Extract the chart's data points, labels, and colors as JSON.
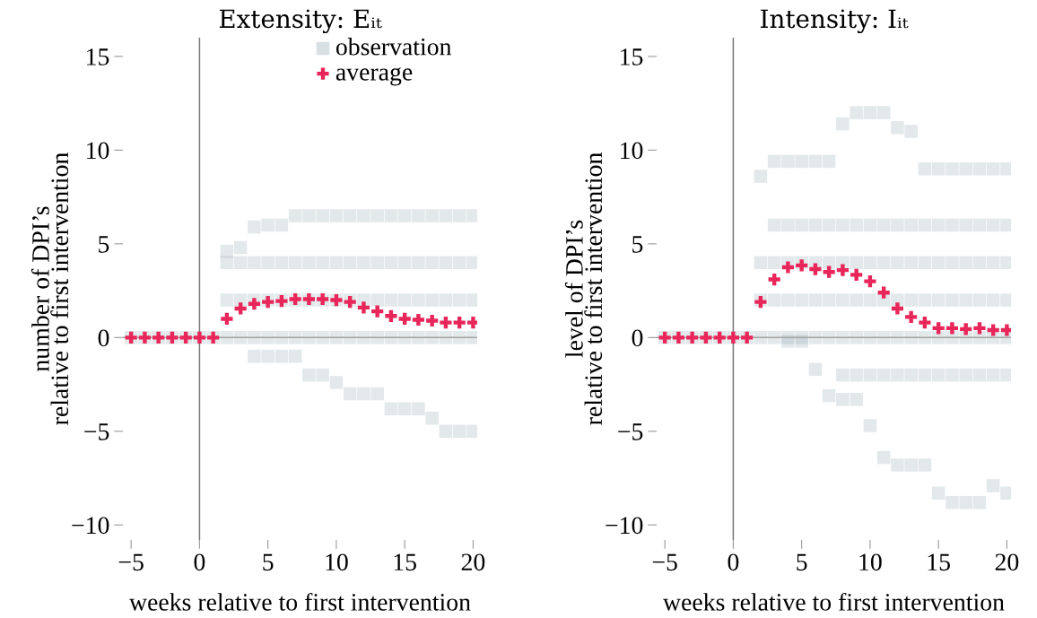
{
  "chart_data": [
    {
      "type": "scatter",
      "title": "Extensity: Eᵢₜ",
      "xlabel": "weeks relative to first intervention",
      "ylabel": "number of DPI’s\nrelative to first intervention",
      "xlim": [
        -5.6,
        20.3
      ],
      "ylim": [
        -10.8,
        16
      ],
      "xticks": [
        -5,
        0,
        5,
        10,
        15,
        20
      ],
      "yticks": [
        -10,
        -5,
        0,
        5,
        10,
        15
      ],
      "grid": false,
      "legend": "top right",
      "ref_lines": [
        {
          "axis": "x",
          "value": 0,
          "color": "#7a7a7a"
        },
        {
          "axis": "y",
          "value": 0,
          "color": "#a3a3a3"
        }
      ],
      "series": [
        {
          "name": "observation",
          "color": "#7f98a5",
          "marker": "square",
          "x": [
            -5,
            -4,
            -3,
            -2,
            -1,
            0,
            1,
            2,
            2,
            2,
            2,
            3,
            3,
            3,
            3,
            4,
            4,
            4,
            4,
            4,
            5,
            5,
            5,
            5,
            5,
            6,
            6,
            6,
            6,
            6,
            7,
            7,
            7,
            7,
            7,
            8,
            8,
            8,
            8,
            8,
            9,
            9,
            9,
            9,
            9,
            10,
            10,
            10,
            10,
            10,
            11,
            11,
            11,
            11,
            11,
            12,
            12,
            12,
            12,
            12,
            13,
            13,
            13,
            13,
            13,
            14,
            14,
            14,
            14,
            14,
            15,
            15,
            15,
            15,
            15,
            16,
            16,
            16,
            16,
            16,
            17,
            17,
            17,
            17,
            17,
            18,
            18,
            18,
            18,
            18,
            19,
            19,
            19,
            19,
            19,
            20,
            20,
            20,
            20,
            20
          ],
          "values": [
            0,
            0,
            0,
            0,
            0,
            0,
            0,
            4.6,
            0,
            2,
            4,
            4.8,
            0,
            2,
            4,
            5.9,
            -1,
            0,
            2,
            4,
            6,
            -1,
            0,
            2,
            4,
            6,
            -1,
            0,
            2,
            4,
            6.5,
            -1,
            0,
            2,
            4,
            6.5,
            -2,
            0,
            2,
            4,
            6.5,
            -2,
            0,
            2,
            4,
            6.5,
            -2.4,
            0,
            2,
            4,
            6.5,
            -3,
            0,
            2,
            4,
            6.5,
            -3,
            0,
            2,
            4,
            6.5,
            -3,
            0,
            2,
            4,
            6.5,
            -3.8,
            0,
            2,
            4,
            6.5,
            -3.8,
            0,
            2,
            4,
            6.5,
            -3.8,
            0,
            2,
            4,
            6.5,
            -4.3,
            0,
            2,
            4,
            6.5,
            -5,
            0,
            2,
            4,
            6.5,
            -5,
            0,
            2,
            4,
            6.5,
            -5,
            0,
            2,
            4
          ]
        },
        {
          "name": "average",
          "color": "#e8265a",
          "marker": "cross",
          "x": [
            -5,
            -4,
            -3,
            -2,
            -1,
            0,
            1,
            2,
            3,
            4,
            5,
            6,
            7,
            8,
            9,
            10,
            11,
            12,
            13,
            14,
            15,
            16,
            17,
            18,
            19,
            20
          ],
          "values": [
            0,
            0,
            0,
            0,
            0,
            0,
            0,
            1.0,
            1.55,
            1.8,
            1.9,
            1.95,
            2.05,
            2.05,
            2.05,
            2.0,
            1.9,
            1.6,
            1.4,
            1.15,
            1.0,
            0.95,
            0.9,
            0.8,
            0.8,
            0.8
          ]
        }
      ]
    },
    {
      "type": "scatter",
      "title": "Intensity: Iᵢₜ",
      "xlabel": "weeks relative to first intervention",
      "ylabel": "level of DPI’s\nrelative to first intervention",
      "xlim": [
        -5.6,
        20.3
      ],
      "ylim": [
        -10.8,
        16
      ],
      "xticks": [
        -5,
        0,
        5,
        10,
        15,
        20
      ],
      "yticks": [
        -10,
        -5,
        0,
        5,
        10,
        15
      ],
      "grid": false,
      "ref_lines": [
        {
          "axis": "x",
          "value": 0,
          "color": "#7a7a7a"
        },
        {
          "axis": "y",
          "value": 0,
          "color": "#a3a3a3"
        }
      ],
      "series": [
        {
          "color": "#7f98a5",
          "marker": "square",
          "x": [
            -5,
            -4,
            -3,
            -2,
            -1,
            0,
            1,
            2,
            2,
            2,
            2,
            3,
            3,
            3,
            3,
            3,
            4,
            4,
            4,
            4,
            4,
            4,
            5,
            5,
            5,
            5,
            5,
            5,
            6,
            6,
            6,
            6,
            6,
            6,
            7,
            7,
            7,
            7,
            7,
            7,
            8,
            8,
            8,
            8,
            8,
            8,
            8,
            9,
            9,
            9,
            9,
            9,
            9,
            9,
            10,
            10,
            10,
            10,
            10,
            10,
            10,
            11,
            11,
            11,
            11,
            11,
            11,
            11,
            12,
            12,
            12,
            12,
            12,
            12,
            12,
            13,
            13,
            13,
            13,
            13,
            13,
            13,
            14,
            14,
            14,
            14,
            14,
            14,
            14,
            15,
            15,
            15,
            15,
            15,
            15,
            15,
            16,
            16,
            16,
            16,
            16,
            16,
            16,
            17,
            17,
            17,
            17,
            17,
            17,
            17,
            18,
            18,
            18,
            18,
            18,
            18,
            18,
            19,
            19,
            19,
            19,
            19,
            19,
            19,
            20,
            20,
            20,
            20,
            20,
            20,
            20
          ],
          "values": [
            0,
            0,
            0,
            0,
            0,
            0,
            0,
            8.6,
            0,
            2,
            4,
            9.4,
            0,
            2,
            4,
            6,
            9.4,
            -0.2,
            0,
            2,
            4,
            6,
            9.4,
            -0.2,
            0,
            2,
            4,
            6,
            9.4,
            -1.7,
            0,
            2,
            4,
            6,
            9.4,
            -3.1,
            0,
            2,
            4,
            6,
            11.4,
            -3.3,
            -2,
            0,
            2,
            4,
            6,
            12,
            -3.3,
            -2,
            0,
            2,
            4,
            6,
            12,
            -4.7,
            -2,
            0,
            2,
            4,
            6,
            12,
            -6.4,
            -2,
            0,
            2,
            4,
            6,
            11.2,
            -6.8,
            -2,
            0,
            2,
            4,
            6,
            11,
            -6.8,
            -2,
            0,
            2,
            4,
            6,
            9,
            -6.8,
            -2,
            0,
            2,
            4,
            6,
            9,
            -8.3,
            -2,
            0,
            2,
            4,
            6,
            9,
            -8.8,
            -2,
            0,
            2,
            4,
            6,
            9,
            -8.8,
            -2,
            0,
            2,
            4,
            6,
            9,
            -8.8,
            -2,
            0,
            2,
            4,
            6,
            9,
            -7.9,
            -2,
            0,
            2,
            4,
            6,
            9,
            -8.3,
            -2,
            0,
            2,
            4,
            6
          ]
        },
        {
          "color": "#e8265a",
          "marker": "cross",
          "x": [
            -5,
            -4,
            -3,
            -2,
            -1,
            0,
            1,
            2,
            3,
            4,
            5,
            6,
            7,
            8,
            9,
            10,
            11,
            12,
            13,
            14,
            15,
            16,
            17,
            18,
            19,
            20
          ],
          "values": [
            0,
            0,
            0,
            0,
            0,
            0,
            0,
            1.9,
            3.1,
            3.75,
            3.85,
            3.65,
            3.5,
            3.6,
            3.35,
            3.0,
            2.4,
            1.55,
            1.1,
            0.8,
            0.5,
            0.5,
            0.45,
            0.5,
            0.4,
            0.4
          ]
        }
      ]
    }
  ]
}
